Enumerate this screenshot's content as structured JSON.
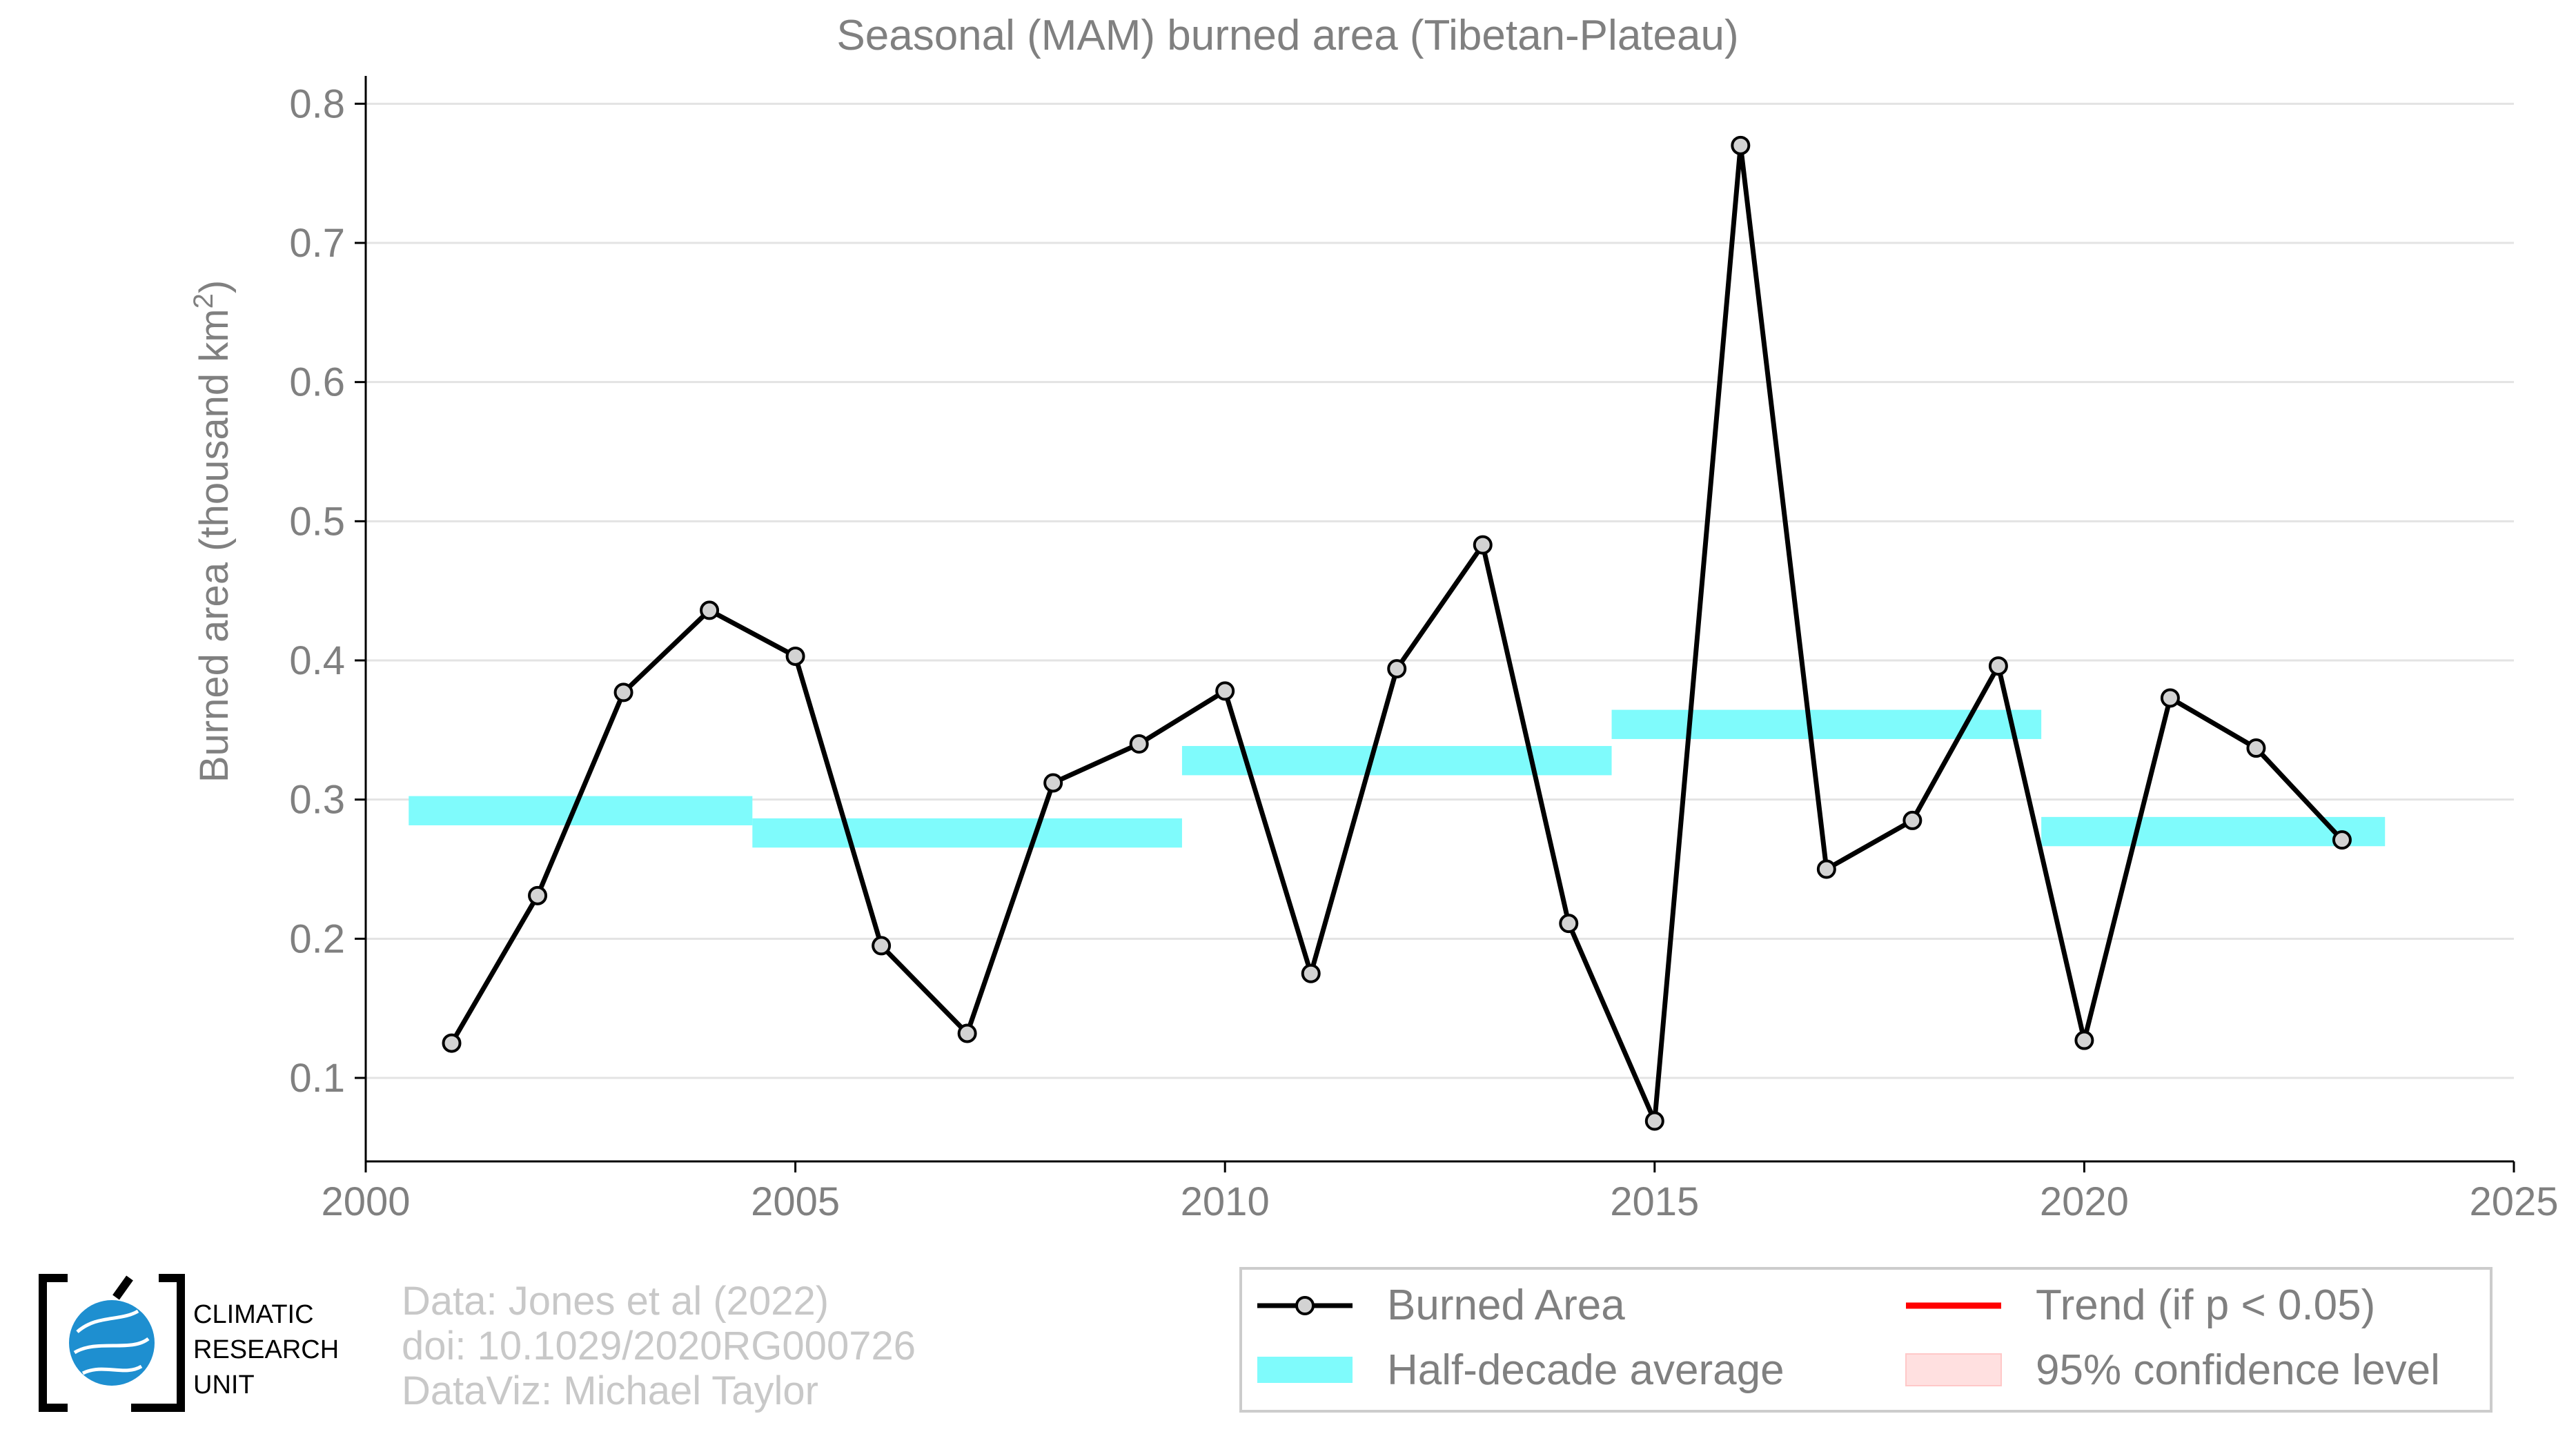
{
  "chart_data": {
    "type": "line",
    "title": "Seasonal (MAM) burned area (Tibetan-Plateau)",
    "xlabel": "",
    "ylabel": "Burned area (thousand km",
    "ylabel_sup": "2",
    "ylabel_end": ")",
    "xlim": [
      2000,
      2025
    ],
    "ylim": [
      0.04,
      0.82
    ],
    "x_ticks": [
      2000,
      2005,
      2010,
      2015,
      2020,
      2025
    ],
    "y_ticks": [
      0.1,
      0.2,
      0.3,
      0.4,
      0.5,
      0.6,
      0.7,
      0.8
    ],
    "y_tick_labels": [
      "0.1",
      "0.2",
      "0.3",
      "0.4",
      "0.5",
      "0.6",
      "0.7",
      "0.8"
    ],
    "grid": true,
    "series": [
      {
        "name": "Burned Area",
        "color": "#000000",
        "x": [
          2001,
          2002,
          2003,
          2004,
          2005,
          2006,
          2007,
          2008,
          2009,
          2010,
          2011,
          2012,
          2013,
          2014,
          2015,
          2016,
          2017,
          2018,
          2019,
          2020,
          2021,
          2022,
          2023
        ],
        "y": [
          0.125,
          0.231,
          0.377,
          0.436,
          0.403,
          0.195,
          0.132,
          0.312,
          0.34,
          0.378,
          0.175,
          0.394,
          0.483,
          0.211,
          0.069,
          0.77,
          0.25,
          0.285,
          0.396,
          0.127,
          0.373,
          0.337,
          0.271
        ]
      }
    ],
    "half_decade_average": {
      "name": "Half-decade average",
      "color": "#7ffbfc",
      "segments": [
        {
          "x0": 2000.5,
          "x1": 2004.5,
          "y": 0.292
        },
        {
          "x0": 2004.5,
          "x1": 2009.5,
          "y": 0.276
        },
        {
          "x0": 2009.5,
          "x1": 2014.5,
          "y": 0.328
        },
        {
          "x0": 2014.5,
          "x1": 2019.5,
          "y": 0.354
        },
        {
          "x0": 2019.5,
          "x1": 2023.5,
          "y": 0.277
        }
      ]
    },
    "legend": {
      "placement": "bottom-right",
      "items": [
        {
          "label": "Burned Area",
          "kind": "line-marker",
          "color": "#000000"
        },
        {
          "label": "Trend (if p < 0.05)",
          "kind": "line",
          "color": "#ff0000"
        },
        {
          "label": "Half-decade average",
          "kind": "band",
          "color": "#7ffbfc"
        },
        {
          "label": "95% confidence level",
          "kind": "band",
          "color": "#ffe0e0"
        }
      ]
    }
  },
  "credits": {
    "line1": "Data: Jones et al (2022)",
    "line2": "doi: 10.1029/2020RG000726",
    "line3": "DataViz: Michael Taylor"
  },
  "logo": {
    "line1": "CLIMATIC",
    "line2": "RESEARCH",
    "line3": "UNIT",
    "accent_color": "#1e8fd0"
  }
}
